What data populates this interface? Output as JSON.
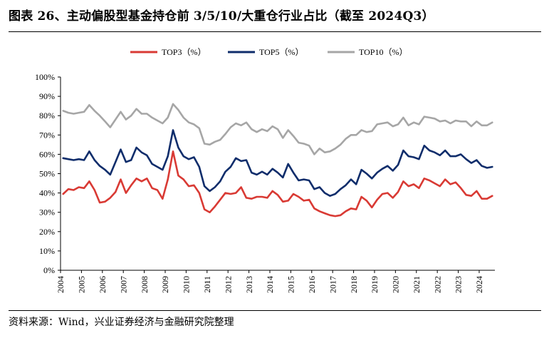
{
  "title": "图表 26、主动偏股型基金持仓前 3/5/10/大重仓行业占比（截至 2024Q3）",
  "source": "资料来源：Wind，兴业证券经济与金融研究院整理",
  "chart_data": {
    "type": "line",
    "title": "图表 26、主动偏股型基金持仓前 3/5/10/大重仓行业占比（截至 2024Q3）",
    "x": [
      "2004Q1",
      "2004Q2",
      "2004Q3",
      "2004Q4",
      "2005Q1",
      "2005Q2",
      "2005Q3",
      "2005Q4",
      "2006Q1",
      "2006Q2",
      "2006Q3",
      "2006Q4",
      "2007Q1",
      "2007Q2",
      "2007Q3",
      "2007Q4",
      "2008Q1",
      "2008Q2",
      "2008Q3",
      "2008Q4",
      "2009Q1",
      "2009Q2",
      "2009Q3",
      "2009Q4",
      "2010Q1",
      "2010Q2",
      "2010Q3",
      "2010Q4",
      "2011Q1",
      "2011Q2",
      "2011Q3",
      "2011Q4",
      "2012Q1",
      "2012Q2",
      "2012Q3",
      "2012Q4",
      "2013Q1",
      "2013Q2",
      "2013Q3",
      "2013Q4",
      "2014Q1",
      "2014Q2",
      "2014Q3",
      "2014Q4",
      "2015Q1",
      "2015Q2",
      "2015Q3",
      "2015Q4",
      "2016Q1",
      "2016Q2",
      "2016Q3",
      "2016Q4",
      "2017Q1",
      "2017Q2",
      "2017Q3",
      "2017Q4",
      "2018Q1",
      "2018Q2",
      "2018Q3",
      "2018Q4",
      "2019Q1",
      "2019Q2",
      "2019Q3",
      "2019Q4",
      "2020Q1",
      "2020Q2",
      "2020Q3",
      "2020Q4",
      "2021Q1",
      "2021Q2",
      "2021Q3",
      "2021Q4",
      "2022Q1",
      "2022Q2",
      "2022Q3",
      "2022Q4",
      "2023Q1",
      "2023Q2",
      "2023Q3",
      "2023Q4",
      "2024Q1",
      "2024Q2",
      "2024Q3"
    ],
    "tick_labels": [
      "2004",
      "2005",
      "2006",
      "2007",
      "2008",
      "2009",
      "2010",
      "2011",
      "2012",
      "2013",
      "2014",
      "2015",
      "2016",
      "2017",
      "2018",
      "2019",
      "2020",
      "2021",
      "2022",
      "2023",
      "2024"
    ],
    "y_tick_labels": [
      "0%",
      "10%",
      "20%",
      "30%",
      "40%",
      "50%",
      "60%",
      "70%",
      "80%",
      "90%",
      "100%"
    ],
    "ylim": [
      0,
      100
    ],
    "grid": false,
    "legend_position": "top-center",
    "series": [
      {
        "name": "TOP3（%）",
        "color": "#d93a34",
        "values": [
          39.5,
          42,
          41.5,
          43,
          42.5,
          46,
          41.5,
          35,
          35.5,
          37.5,
          40.5,
          47,
          40,
          44,
          47.5,
          46,
          47.5,
          42.5,
          41.5,
          37,
          47,
          61.5,
          49,
          47,
          43.5,
          44,
          40,
          31.5,
          30,
          33,
          36.5,
          40,
          39.5,
          40,
          43,
          37.5,
          37,
          38,
          38,
          37.5,
          41,
          39,
          35.5,
          36,
          39.5,
          38,
          36,
          36.5,
          32,
          30.5,
          29.5,
          28.5,
          28,
          28.5,
          30.5,
          32,
          31.5,
          38,
          36,
          32.5,
          36.5,
          39.5,
          40,
          37.5,
          40.5,
          46,
          43.5,
          44.5,
          42.5,
          47.5,
          46.5,
          45,
          43.5,
          47,
          44.5,
          45.5,
          42.5,
          39,
          38.5,
          41,
          37,
          37,
          38.5
        ]
      },
      {
        "name": "TOP5（%）",
        "color": "#0f2d6b",
        "values": [
          58,
          57.5,
          57,
          57.5,
          57,
          61.5,
          57,
          54,
          52,
          49.5,
          56,
          62.5,
          56,
          57,
          63.5,
          61,
          59.5,
          55,
          53.5,
          52,
          59,
          72.5,
          63.5,
          59,
          57.5,
          58.5,
          53.5,
          43.5,
          41,
          43,
          46,
          51,
          53.5,
          58,
          56.5,
          57,
          50.5,
          49.5,
          51,
          49.5,
          52.5,
          50.5,
          48,
          55,
          50.5,
          46.5,
          47,
          46.5,
          42,
          43,
          40,
          38.5,
          39.5,
          42,
          44,
          47,
          44.5,
          52,
          50,
          47.5,
          50.5,
          52.5,
          54,
          51.5,
          54.5,
          62,
          59,
          58.5,
          57.5,
          64.5,
          62,
          61,
          59.5,
          62,
          59,
          59,
          60,
          57.5,
          55.5,
          57,
          54,
          53,
          53.5
        ]
      },
      {
        "name": "TOP10（%）",
        "color": "#a6a6a6",
        "values": [
          82.5,
          81.5,
          81,
          81.5,
          82,
          85.5,
          82.5,
          80,
          77,
          74,
          78,
          82,
          78,
          80,
          83.5,
          81,
          81,
          79,
          77.5,
          76,
          79,
          86,
          83,
          79,
          76.5,
          75.5,
          73.5,
          65.5,
          65,
          66.5,
          67.5,
          70.5,
          74,
          76,
          75,
          76.5,
          73,
          71.5,
          73,
          72,
          74.5,
          73,
          68.5,
          72.5,
          69.5,
          66,
          65.5,
          64.5,
          60,
          63,
          61,
          61.5,
          63,
          65,
          68,
          70,
          70,
          72.5,
          71.5,
          72,
          75.5,
          76,
          76.5,
          74.5,
          75.5,
          79,
          75,
          76.5,
          75.5,
          79.5,
          79,
          78.5,
          77,
          77.5,
          76,
          77.5,
          77,
          77,
          74.5,
          77,
          75,
          75,
          76.5
        ]
      }
    ]
  }
}
